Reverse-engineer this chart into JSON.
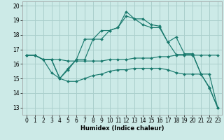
{
  "xlabel": "Humidex (Indice chaleur)",
  "bg_color": "#cceae7",
  "grid_color": "#aacfcc",
  "line_color": "#1a7a6e",
  "xlim": [
    -0.5,
    23.5
  ],
  "ylim": [
    12.5,
    20.3
  ],
  "xticks": [
    0,
    1,
    2,
    3,
    4,
    5,
    6,
    7,
    8,
    9,
    10,
    11,
    12,
    13,
    14,
    15,
    16,
    17,
    18,
    19,
    20,
    21,
    22,
    23
  ],
  "yticks": [
    13,
    14,
    15,
    16,
    17,
    18,
    19,
    20
  ],
  "series": [
    {
      "x": [
        0,
        1,
        2,
        3,
        4,
        5,
        6,
        7,
        8,
        9,
        10,
        11,
        12,
        13,
        14,
        15,
        16,
        17,
        18,
        19,
        20,
        21,
        22,
        23
      ],
      "y": [
        16.6,
        16.6,
        16.3,
        15.4,
        15.0,
        15.6,
        16.3,
        17.7,
        17.7,
        18.3,
        18.3,
        18.5,
        19.6,
        19.1,
        19.1,
        18.7,
        18.6,
        17.5,
        17.85,
        16.7,
        16.7,
        15.3,
        14.4,
        13.0
      ]
    },
    {
      "x": [
        0,
        1,
        2,
        3,
        4,
        5,
        6,
        7,
        8,
        9,
        10,
        11,
        12,
        13,
        14,
        15,
        16,
        17,
        18,
        19,
        20,
        21,
        22,
        23
      ],
      "y": [
        16.6,
        16.6,
        16.3,
        16.3,
        15.0,
        15.7,
        16.3,
        16.3,
        17.7,
        17.7,
        18.3,
        18.5,
        19.3,
        19.1,
        18.7,
        18.5,
        18.5,
        17.5,
        16.65,
        16.65,
        16.65,
        15.3,
        14.35,
        13.0
      ]
    },
    {
      "x": [
        0,
        1,
        2,
        3,
        4,
        5,
        6,
        7,
        8,
        9,
        10,
        11,
        12,
        13,
        14,
        15,
        16,
        17,
        18,
        19,
        20,
        21,
        22,
        23
      ],
      "y": [
        16.6,
        16.6,
        16.3,
        16.3,
        16.3,
        16.2,
        16.2,
        16.2,
        16.2,
        16.2,
        16.3,
        16.3,
        16.3,
        16.4,
        16.4,
        16.4,
        16.5,
        16.5,
        16.6,
        16.6,
        16.6,
        16.6,
        16.6,
        16.6
      ]
    },
    {
      "x": [
        0,
        1,
        2,
        3,
        4,
        5,
        6,
        7,
        8,
        9,
        10,
        11,
        12,
        13,
        14,
        15,
        16,
        17,
        18,
        19,
        20,
        21,
        22,
        23
      ],
      "y": [
        16.6,
        16.6,
        16.3,
        16.3,
        15.0,
        14.8,
        14.8,
        15.0,
        15.2,
        15.3,
        15.5,
        15.6,
        15.6,
        15.7,
        15.7,
        15.7,
        15.7,
        15.6,
        15.4,
        15.3,
        15.3,
        15.3,
        15.3,
        13.0
      ]
    }
  ]
}
